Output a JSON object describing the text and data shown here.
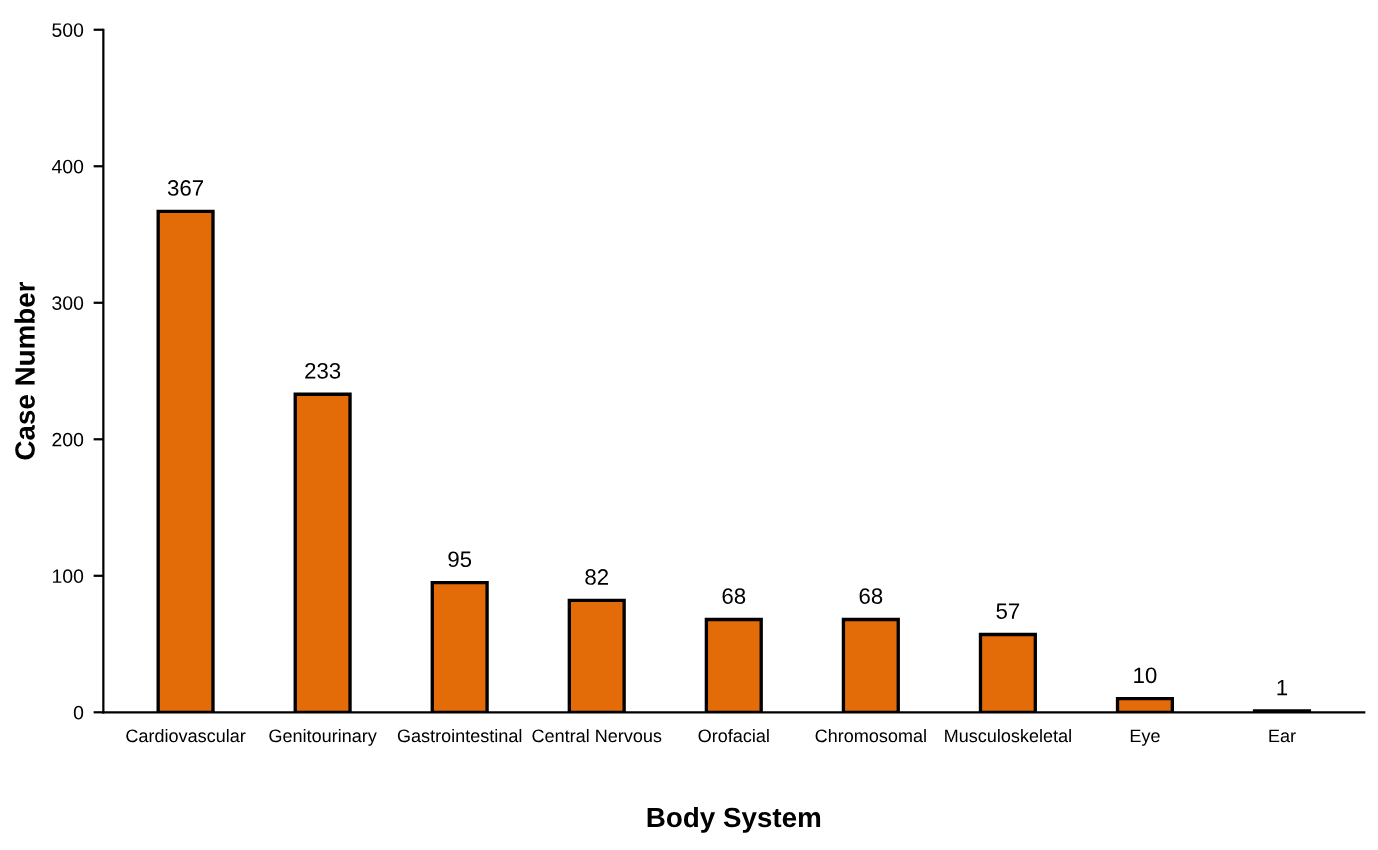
{
  "chart_data": {
    "type": "bar",
    "xlabel": "Body System",
    "ylabel": "Case Number",
    "categories": [
      "Cardiovascular",
      "Genitourinary",
      "Gastrointestinal",
      "Central Nervous",
      "Orofacial",
      "Chromosomal",
      "Musculoskeletal",
      "Eye",
      "Ear"
    ],
    "values": [
      367,
      233,
      95,
      82,
      68,
      68,
      57,
      10,
      1
    ],
    "color": "#e36c09",
    "ylim": [
      0,
      500
    ],
    "yticks": [
      0,
      100,
      200,
      300,
      400,
      500
    ],
    "grid": false,
    "data_labels": true
  }
}
